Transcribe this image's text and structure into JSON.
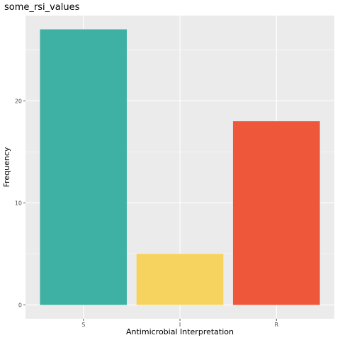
{
  "chart_data": {
    "type": "bar",
    "title": "some_rsi_values",
    "xlabel": "Antimicrobial Interpretation",
    "ylabel": "Frequency",
    "categories": [
      "S",
      "I",
      "R"
    ],
    "values": [
      27,
      5,
      18
    ],
    "ylim": [
      -1.35,
      28.35
    ],
    "yticks": [
      0,
      10,
      20
    ],
    "ytick_labels": [
      "0",
      "10",
      "20"
    ],
    "grid": true,
    "colors": [
      "#3EB0A4",
      "#F6D35E",
      "#EE573A"
    ],
    "panel_background": "#EBEBEB",
    "legend": "none"
  }
}
